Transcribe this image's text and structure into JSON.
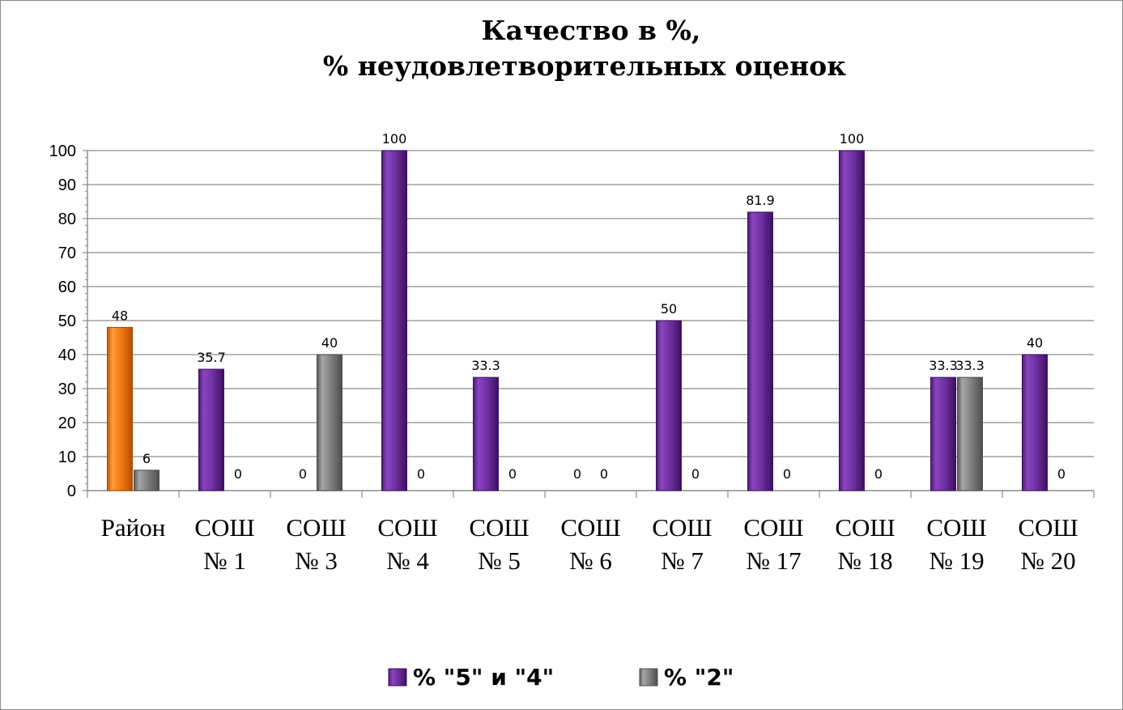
{
  "chart_data": {
    "type": "bar",
    "title_lines": [
      "Качество в %,",
      "% неудовлетворительных оценок"
    ],
    "categories": [
      [
        "Район"
      ],
      [
        "СОШ",
        "№ 1"
      ],
      [
        "СОШ",
        "№ 3"
      ],
      [
        "СОШ",
        "№ 4"
      ],
      [
        "СОШ",
        "№ 5"
      ],
      [
        "СОШ",
        "№ 6"
      ],
      [
        "СОШ",
        "№ 7"
      ],
      [
        "СОШ",
        "№ 17"
      ],
      [
        "СОШ",
        "№ 18"
      ],
      [
        "СОШ",
        "№ 19"
      ],
      [
        "СОШ",
        "№ 20"
      ]
    ],
    "series": [
      {
        "name": "% \"5\" и \"4\"",
        "values": [
          48,
          35.7,
          0,
          100,
          33.3,
          0,
          50,
          81.9,
          100,
          33.3,
          40
        ],
        "color": "#7030a0",
        "highlight": {
          "index": 0,
          "color": "#f07a10"
        }
      },
      {
        "name": "% \"2\"",
        "values": [
          6,
          0,
          40,
          0,
          0,
          0,
          0,
          0,
          0,
          33.3,
          0
        ],
        "color": "#808080"
      }
    ],
    "ylim": [
      0,
      100
    ],
    "yticks": [
      0,
      10,
      20,
      30,
      40,
      50,
      60,
      70,
      80,
      90,
      100
    ],
    "grid": true,
    "legend_position": "bottom"
  }
}
